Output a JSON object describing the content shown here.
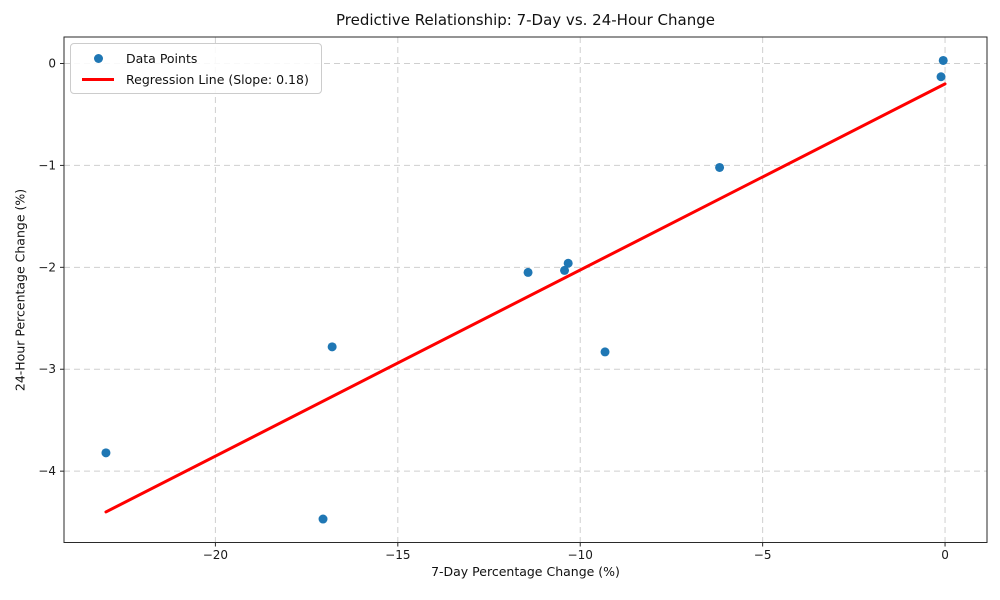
{
  "title": "Predictive Relationship: 7-Day vs. 24-Hour Change",
  "legend": {
    "position": "upper left",
    "items": [
      {
        "label": "Data Points",
        "marker": "dot",
        "color": "#1f77b4"
      },
      {
        "label": "Regression Line (Slope: 0.18)",
        "marker": "line",
        "color": "#ff0000"
      }
    ]
  },
  "chart_data": {
    "type": "scatter",
    "title": "Predictive Relationship: 7-Day vs. 24-Hour Change",
    "xlabel": "7-Day Percentage Change (%)",
    "ylabel": "24-Hour Percentage Change (%)",
    "xlim": [
      -24.15,
      1.15
    ],
    "ylim": [
      -4.7,
      0.26
    ],
    "grid": true,
    "legend_position": "upper left",
    "xticks": [
      {
        "value": -20,
        "label": "−20"
      },
      {
        "value": -15,
        "label": "−15"
      },
      {
        "value": -10,
        "label": "−10"
      },
      {
        "value": -5,
        "label": "−5"
      },
      {
        "value": 0,
        "label": "0"
      }
    ],
    "yticks": [
      {
        "value": 0,
        "label": "0"
      },
      {
        "value": -1,
        "label": "−1"
      },
      {
        "value": -2,
        "label": "−2"
      },
      {
        "value": -3,
        "label": "−3"
      },
      {
        "value": -4,
        "label": "−4"
      }
    ],
    "series": [
      {
        "name": "Data Points",
        "type": "scatter",
        "color": "#1f77b4",
        "points": [
          [
            -23.0,
            -3.82
          ],
          [
            -17.05,
            -4.47
          ],
          [
            -16.8,
            -2.78
          ],
          [
            -11.43,
            -2.05
          ],
          [
            -10.43,
            -2.03
          ],
          [
            -10.33,
            -1.96
          ],
          [
            -9.32,
            -2.83
          ],
          [
            -6.18,
            -1.02
          ],
          [
            -0.11,
            -0.13
          ],
          [
            -0.05,
            0.03
          ]
        ]
      },
      {
        "name": "Regression Line (Slope: 0.18)",
        "type": "line",
        "color": "#ff0000",
        "slope": 0.18,
        "points": [
          [
            -23.0,
            -4.4
          ],
          [
            0.0,
            -0.2
          ]
        ]
      }
    ],
    "style": {
      "grid_color": "#cfcfcf",
      "spine_color": "#2a2a2a",
      "tick_text_color": "#1a1a1a"
    }
  }
}
